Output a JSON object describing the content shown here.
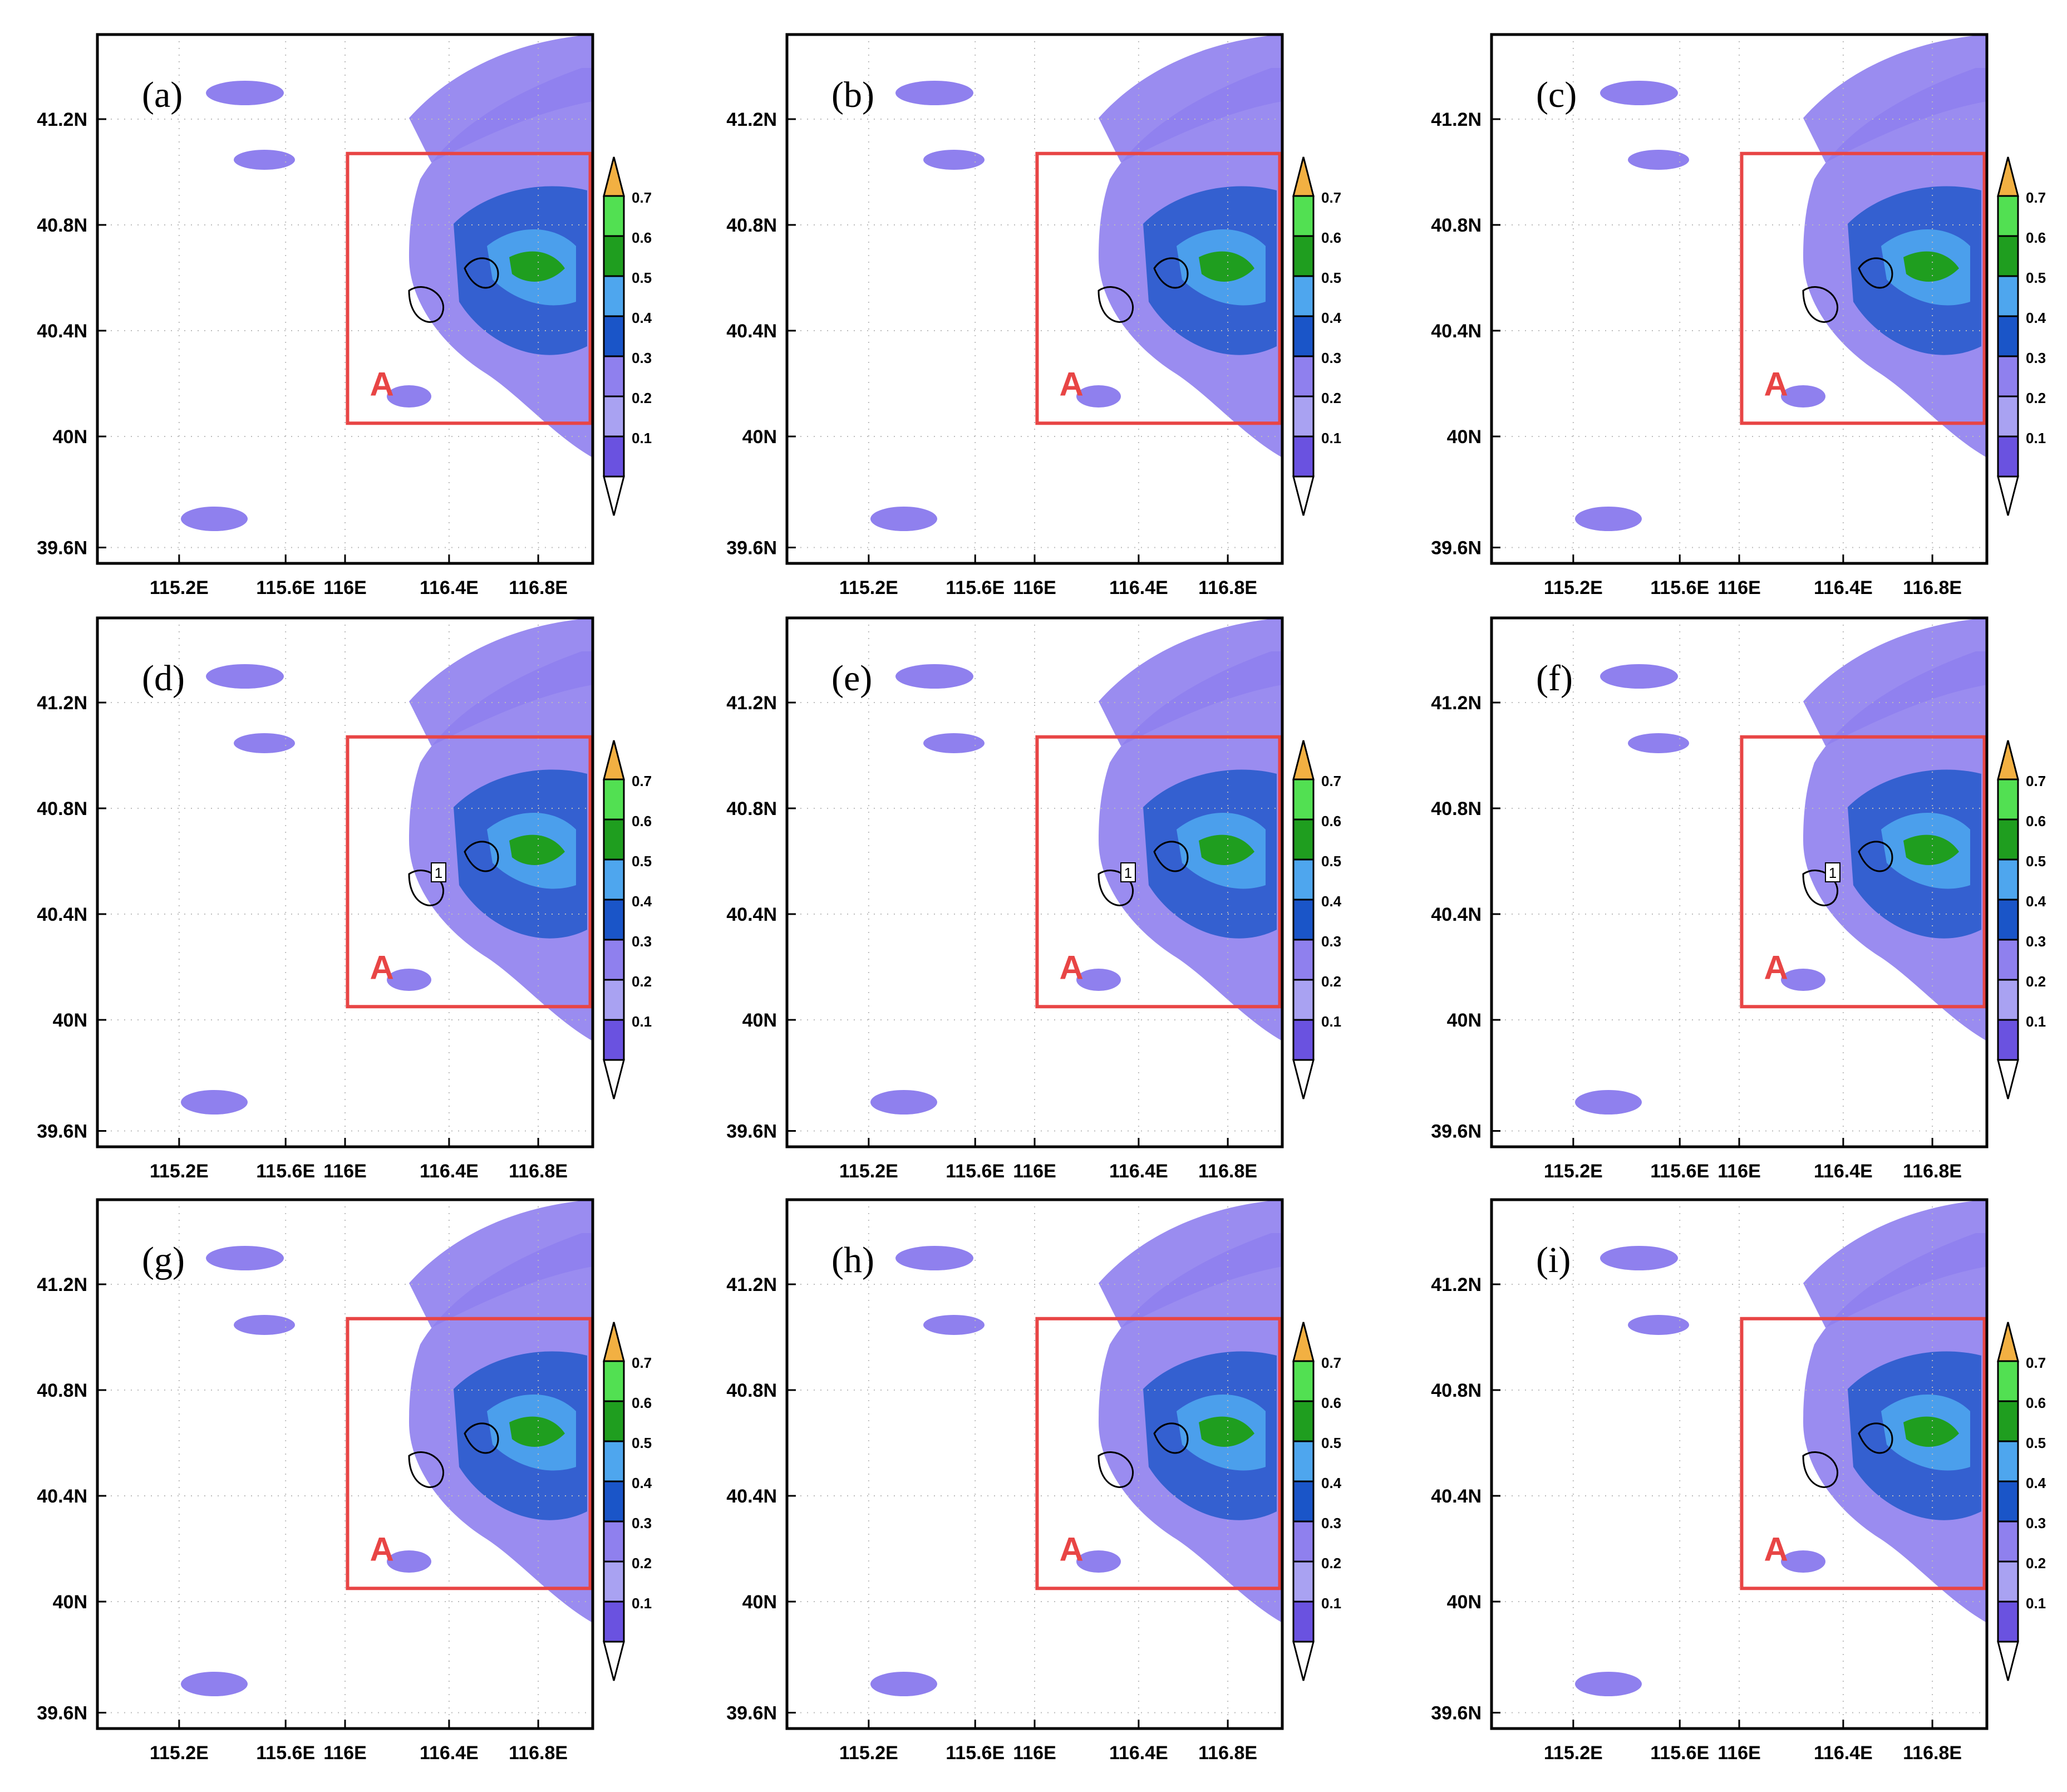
{
  "panels": [
    {
      "label": "(a)",
      "region": "A"
    },
    {
      "label": "(b)",
      "region": "A"
    },
    {
      "label": "(c)",
      "region": "A"
    },
    {
      "label": "(d)",
      "region": "A"
    },
    {
      "label": "(e)",
      "region": "A"
    },
    {
      "label": "(f)",
      "region": "A"
    },
    {
      "label": "(g)",
      "region": "A"
    },
    {
      "label": "(h)",
      "region": "A"
    },
    {
      "label": "(i)",
      "region": "A"
    }
  ],
  "axes": {
    "x_ticks": [
      "115.2E",
      "115.6E",
      "116E",
      "116.4E",
      "116.8E"
    ],
    "y_ticks": [
      "41.2N",
      "40.8N",
      "40.4N",
      "40N",
      "39.6N"
    ]
  },
  "colorbar": {
    "levels": [
      "0.7",
      "0.6",
      "0.5",
      "0.4",
      "0.3",
      "0.2",
      "0.1"
    ],
    "colors": [
      "#f2b042",
      "#52e052",
      "#1f9e1f",
      "#4ea6ee",
      "#1a55c8",
      "#8f80ee",
      "#a9a2f2",
      "#6a52e0",
      "#ffffff"
    ]
  },
  "contour_label": "1",
  "colors": {
    "box": "#e84545",
    "frame": "#000000"
  }
}
